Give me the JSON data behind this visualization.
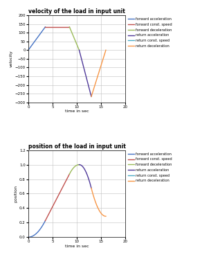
{
  "title1": "velocity of the load in input unit",
  "title2": "position of the load in input unit",
  "xlabel": "time in sec",
  "ylabel1": "velocity",
  "ylabel2": "position",
  "xlim": [
    0,
    20
  ],
  "ylim1": [
    -300,
    200
  ],
  "ylim2": [
    0,
    1.2
  ],
  "yticks1": [
    200,
    150,
    100,
    50,
    0,
    -50,
    -100,
    -150,
    -200,
    -250,
    -300
  ],
  "yticks2": [
    0,
    0.2,
    0.4,
    0.6,
    0.8,
    1.0,
    1.2
  ],
  "xticks": [
    0,
    5,
    10,
    15,
    20
  ],
  "legend_labels": [
    "forward acceleration",
    "forward const. speed",
    "forward deceleration",
    "return acceleration",
    "return const. speed",
    "return deceleration"
  ],
  "colors": {
    "forward_accel": "#4472C4",
    "forward_const": "#C0504D",
    "forward_decel": "#9BBB59",
    "return_accel": "#4F3999",
    "return_const": "#4BACC6",
    "return_decel": "#F79646"
  },
  "bg_color": "#FFFFFF",
  "grid_color": "#C0C0C0",
  "fig_bg": "#FFFFFF",
  "lw": 1.0
}
